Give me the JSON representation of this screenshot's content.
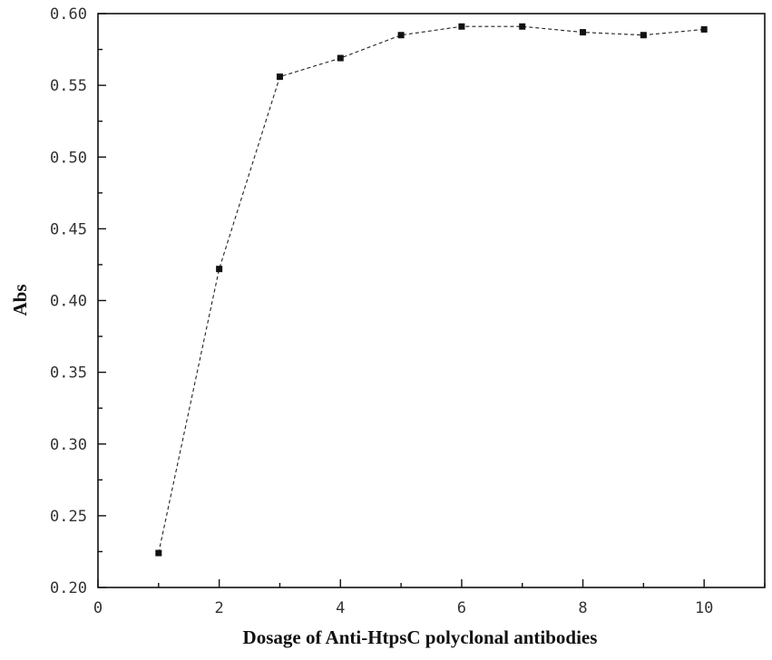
{
  "chart_data": {
    "type": "line",
    "title": "",
    "xlabel": "Dosage of Anti-HtpsC polyclonal antibodies",
    "ylabel": "Abs",
    "xlim": [
      0,
      11
    ],
    "ylim": [
      0.2,
      0.6
    ],
    "x_ticks": [
      0,
      2,
      4,
      6,
      8,
      10
    ],
    "x_tick_labels": [
      "0",
      "2",
      "4",
      "6",
      "8",
      "10"
    ],
    "y_ticks": [
      0.2,
      0.25,
      0.3,
      0.35,
      0.4,
      0.45,
      0.5,
      0.55,
      0.6
    ],
    "y_tick_labels": [
      "0.20",
      "0.25",
      "0.30",
      "0.35",
      "0.40",
      "0.45",
      "0.50",
      "0.55",
      "0.60"
    ],
    "grid": false,
    "series": [
      {
        "x": [
          1,
          2,
          3,
          4,
          5,
          6,
          7,
          8,
          9,
          10
        ],
        "y": [
          0.224,
          0.422,
          0.556,
          0.569,
          0.585,
          0.591,
          0.591,
          0.587,
          0.585,
          0.589
        ],
        "marker": "square",
        "line_style": "dashed",
        "color": "#111111"
      }
    ]
  }
}
